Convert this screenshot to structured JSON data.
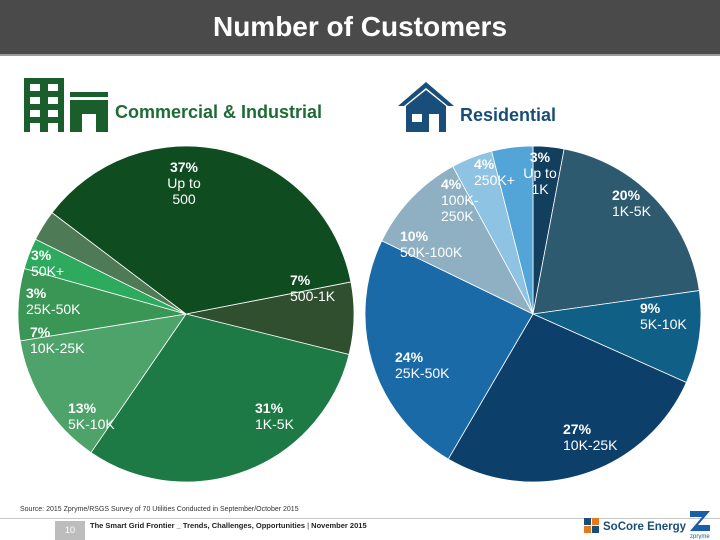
{
  "title": "Number of Customers",
  "colors": {
    "title_bar": "#4a4a4a",
    "commercial_heading": "#1d6b35",
    "residential_heading": "#1a4e7a"
  },
  "icons": {
    "commercial": "building-icon",
    "residential": "house-icon"
  },
  "chart_data": [
    {
      "type": "pie",
      "title": "Commercial & Industrial",
      "unit": "%",
      "slices": [
        {
          "pct": "7%",
          "label": "500-1K",
          "value": 7,
          "color": "#2f4f2f"
        },
        {
          "pct": "31%",
          "label": "1K-5K",
          "value": 31,
          "color": "#1e7a45"
        },
        {
          "pct": "13%",
          "label": "5K-10K",
          "value": 13,
          "color": "#4ea36a"
        },
        {
          "pct": "7%",
          "label": "10K-25K",
          "value": 7,
          "color": "#3a9655"
        },
        {
          "pct": "3%",
          "label": "25K-50K",
          "value": 3,
          "color": "#2daa5d"
        },
        {
          "pct": "3%",
          "label": "50K+",
          "value": 3,
          "color": "#4e7a55"
        },
        {
          "pct": "37%",
          "label": "Up to 500",
          "value": 37,
          "color": "#0f4d21"
        }
      ]
    },
    {
      "type": "pie",
      "title": "Residential",
      "unit": "%",
      "slices": [
        {
          "pct": "3%",
          "label": "Up to 1K",
          "value": 3,
          "color": "#123f5e"
        },
        {
          "pct": "20%",
          "label": "1K-5K",
          "value": 20,
          "color": "#2e5a70"
        },
        {
          "pct": "9%",
          "label": "5K-10K",
          "value": 9,
          "color": "#0f5f86"
        },
        {
          "pct": "27%",
          "label": "10K-25K",
          "value": 27,
          "color": "#0d3f6b"
        },
        {
          "pct": "24%",
          "label": "25K-50K",
          "value": 24,
          "color": "#1b6aa8"
        },
        {
          "pct": "10%",
          "label": "50K-100K",
          "value": 10,
          "color": "#8fb0c3"
        },
        {
          "pct": "4%",
          "label": "100K-250K",
          "value": 4,
          "color": "#8fc3e3"
        },
        {
          "pct": "4%",
          "label": "250K+",
          "value": 4,
          "color": "#52a5d6"
        }
      ]
    }
  ],
  "source": "Source: 2015 Zpryme/RSGS Survey of 70 Utilities Conducted in September/October 2015",
  "footer": {
    "page_number": "10",
    "report_title": "The Smart Grid Frontier _ Trends, Challenges, Opportunities",
    "report_date": "November 2015"
  },
  "logos": {
    "socore": "SoCore Energy",
    "zpryme": "zpryme"
  }
}
